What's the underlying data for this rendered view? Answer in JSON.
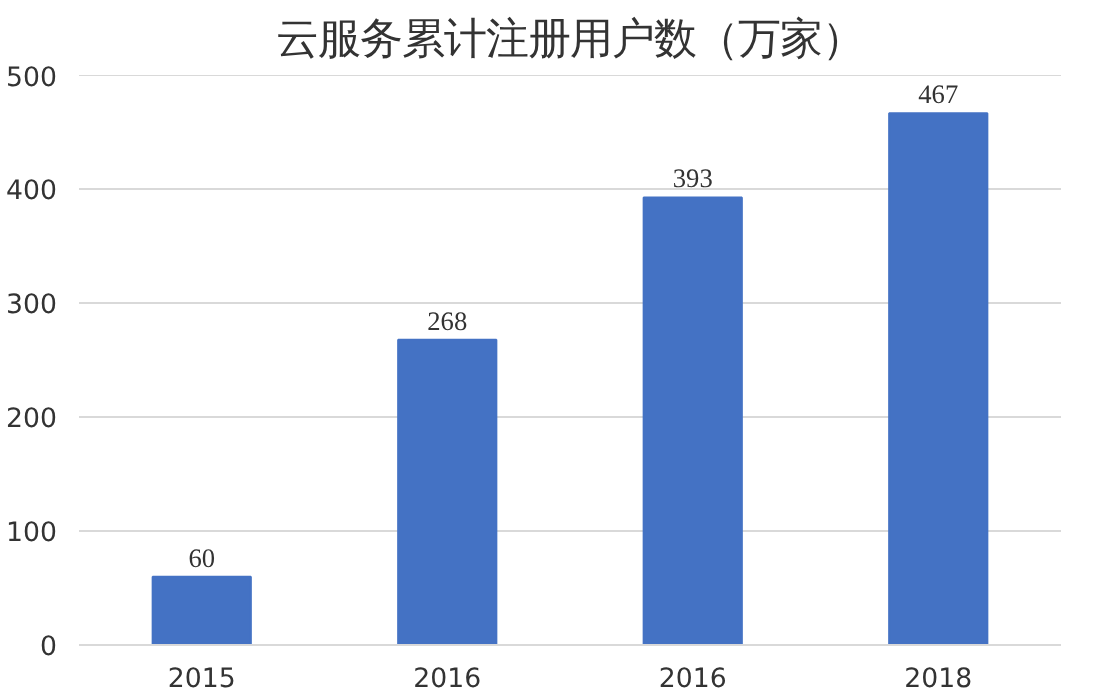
{
  "chart_data": {
    "type": "bar",
    "title": "云服务累计注册用户数（万家）",
    "categories": [
      "2015",
      "2016",
      "2016",
      "2018"
    ],
    "values": [
      60,
      268,
      393,
      467
    ],
    "color": "#4472c4",
    "ylim": [
      0,
      500
    ],
    "yticks": [
      0,
      100,
      200,
      300,
      400,
      500
    ],
    "grid": "y",
    "data_labels": true
  }
}
